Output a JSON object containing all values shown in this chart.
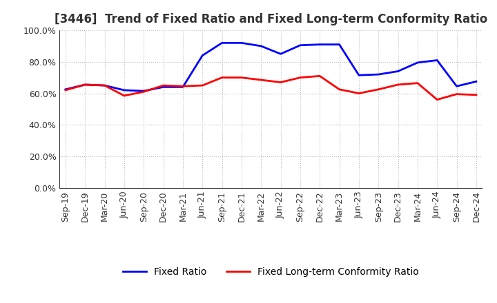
{
  "title": "[3446]  Trend of Fixed Ratio and Fixed Long-term Conformity Ratio",
  "x_labels": [
    "Sep-19",
    "Dec-19",
    "Mar-20",
    "Jun-20",
    "Sep-20",
    "Dec-20",
    "Mar-21",
    "Jun-21",
    "Sep-21",
    "Dec-21",
    "Mar-22",
    "Jun-22",
    "Sep-22",
    "Dec-22",
    "Mar-23",
    "Jun-23",
    "Sep-23",
    "Dec-23",
    "Mar-24",
    "Jun-24",
    "Sep-24",
    "Dec-24"
  ],
  "fixed_ratio": [
    62.5,
    65.5,
    65.0,
    62.0,
    61.5,
    64.0,
    64.0,
    84.0,
    92.0,
    92.0,
    90.0,
    85.0,
    90.5,
    91.0,
    91.0,
    71.5,
    72.0,
    74.0,
    79.5,
    81.0,
    64.5,
    67.5
  ],
  "fixed_lt_ratio": [
    62.0,
    65.5,
    65.0,
    58.5,
    61.0,
    65.0,
    64.5,
    65.0,
    70.0,
    70.0,
    68.5,
    67.0,
    70.0,
    71.0,
    62.5,
    60.0,
    62.5,
    65.5,
    66.5,
    56.0,
    59.5,
    59.0
  ],
  "fixed_ratio_color": "#0000FF",
  "fixed_lt_ratio_color": "#FF0000",
  "ylim": [
    0,
    100
  ],
  "yticks": [
    0,
    20,
    40,
    60,
    80,
    100
  ],
  "ytick_labels": [
    "0.0%",
    "20.0%",
    "40.0%",
    "60.0%",
    "80.0%",
    "100.0%"
  ],
  "legend_fixed_ratio": "Fixed Ratio",
  "legend_fixed_lt_ratio": "Fixed Long-term Conformity Ratio",
  "background_color": "#FFFFFF",
  "plot_bg_color": "#FFFFFF",
  "grid_color": "#BBBBBB",
  "line_width": 2.0,
  "title_fontsize": 12,
  "tick_fontsize": 9,
  "legend_fontsize": 10
}
